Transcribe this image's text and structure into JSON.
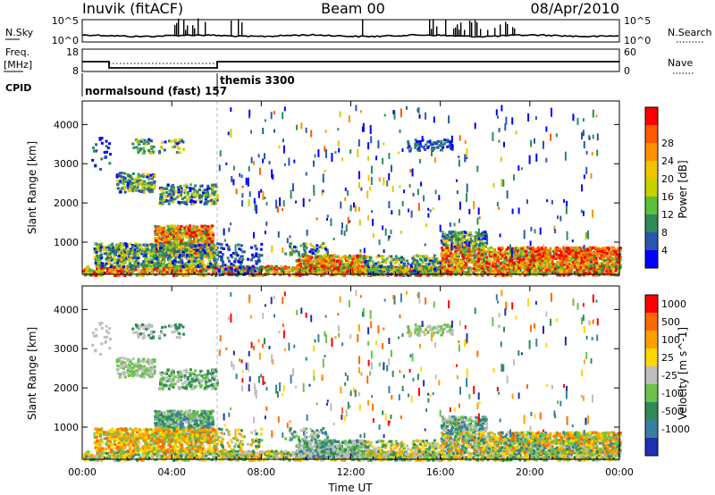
{
  "header": {
    "station": "Inuvik (fitACF)",
    "beam": "Beam 00",
    "date": "08/Apr/2010"
  },
  "panels": {
    "nsky": {
      "left_label": "N.Sky",
      "left_ticks": [
        "10^5",
        "10^0"
      ],
      "right_label": "N.Search",
      "right_ticks": [
        "10^5",
        "10^0"
      ]
    },
    "freq": {
      "left_label_1": "Freq.",
      "left_label_2": "[MHz]",
      "left_ticks": [
        "18",
        "8"
      ],
      "right_label": "Nave",
      "right_ticks": [
        "60",
        "0"
      ]
    },
    "cpid": {
      "label": "CPID",
      "modes": [
        "normalsound (fast) 157",
        "themis 3300"
      ]
    }
  },
  "chart_data": [
    {
      "type": "heatmap",
      "title": "",
      "xlabel": "Time UT",
      "ylabel": "Slant Range [km]",
      "x_ticks": [
        "00:00",
        "04:00",
        "08:00",
        "12:00",
        "16:00",
        "20:00",
        "00:00"
      ],
      "y_ticks": [
        "1000",
        "2000",
        "3000",
        "4000"
      ],
      "xlim_hours": [
        0,
        24
      ],
      "ylim_km": [
        180,
        4600
      ],
      "colorbar": {
        "label": "Power [dB]",
        "ticks": [
          "4",
          "8",
          "12",
          "16",
          "20",
          "24",
          "28"
        ],
        "colors": [
          "#0000ff",
          "#2a56b0",
          "#2e8b57",
          "#5dc03a",
          "#c8d200",
          "#f0c400",
          "#ff9000",
          "#ff5a00",
          "#ff0000"
        ]
      }
    },
    {
      "type": "heatmap",
      "title": "",
      "xlabel": "Time UT",
      "ylabel": "Slant Range [km]",
      "x_ticks": [
        "00:00",
        "04:00",
        "08:00",
        "12:00",
        "16:00",
        "20:00",
        "00:00"
      ],
      "y_ticks": [
        "1000",
        "2000",
        "3000",
        "4000"
      ],
      "xlim_hours": [
        0,
        24
      ],
      "ylim_km": [
        180,
        4600
      ],
      "colorbar": {
        "label": "Velocity [m s^-1]",
        "ticks": [
          "1000",
          "500",
          "100",
          "25",
          "-25",
          "-100",
          "-500",
          "-1000"
        ],
        "colors": [
          "#2030b0",
          "#3a7fa0",
          "#2e8b57",
          "#6cc24a",
          "#bebebe",
          "#ffd700",
          "#ffa000",
          "#ff6a00",
          "#ff0000"
        ]
      }
    }
  ]
}
